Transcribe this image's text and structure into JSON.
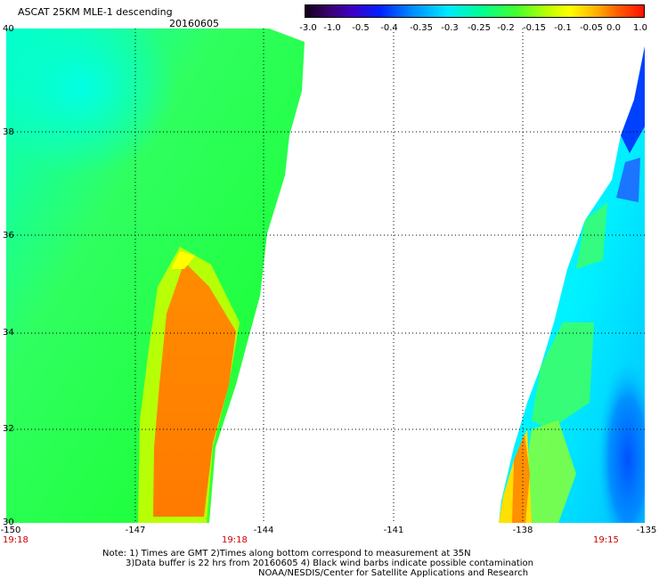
{
  "header": {
    "title": "ASCAT 25KM MLE-1 descending",
    "date": "20160605"
  },
  "colorbar": {
    "tick_labels": [
      "-3.0",
      "-1.0",
      "-0.5",
      "-0.4",
      "-0.35",
      "-0.3",
      "-0.25",
      "-0.2",
      "-0.15",
      "-0.1",
      "-0.05",
      "0.0",
      "1.0"
    ]
  },
  "axes": {
    "lon_labels": [
      "-150",
      "-147",
      "-144",
      "-141",
      "-138",
      "-135"
    ],
    "lat_labels": [
      "40",
      "38",
      "36",
      "34",
      "32",
      "30"
    ],
    "time_labels": [
      "19:18",
      "19:18",
      "19:15"
    ]
  },
  "notes": {
    "line1": "Note: 1) Times are GMT 2)Times along bottom correspond to measurement at 35N",
    "line2": "3)Data buffer is 22 hrs from 20160605 4) Black wind barbs indicate possible contamination",
    "line3": "NOAA/NESDIS/Center for Satellite Applications and Research"
  },
  "colors": {
    "grid": "#000000",
    "time_label": "#cc0000"
  }
}
